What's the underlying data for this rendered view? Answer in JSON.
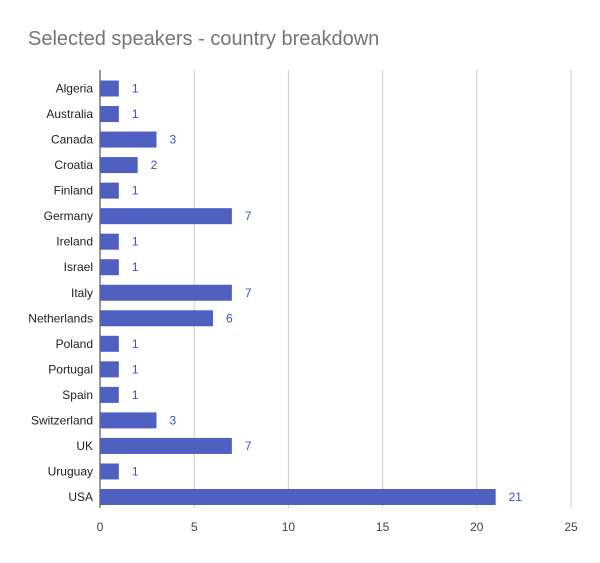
{
  "chart_data": {
    "type": "bar",
    "orientation": "horizontal",
    "title": "Selected speakers - country breakdown",
    "categories": [
      "Algeria",
      "Australia",
      "Canada",
      "Croatia",
      "Finland",
      "Germany",
      "Ireland",
      "Israel",
      "Italy",
      "Netherlands",
      "Poland",
      "Portugal",
      "Spain",
      "Switzerland",
      "UK",
      "Uruguay",
      "USA"
    ],
    "values": [
      1,
      1,
      3,
      2,
      1,
      7,
      1,
      1,
      7,
      6,
      1,
      1,
      1,
      3,
      7,
      1,
      21
    ],
    "xlim": [
      0,
      25
    ],
    "xticks": [
      0,
      5,
      10,
      15,
      20,
      25
    ],
    "grid": true,
    "data_labels": true,
    "legend": "none",
    "bar_color": "#5060c0",
    "label_color": "#3f51b5"
  }
}
